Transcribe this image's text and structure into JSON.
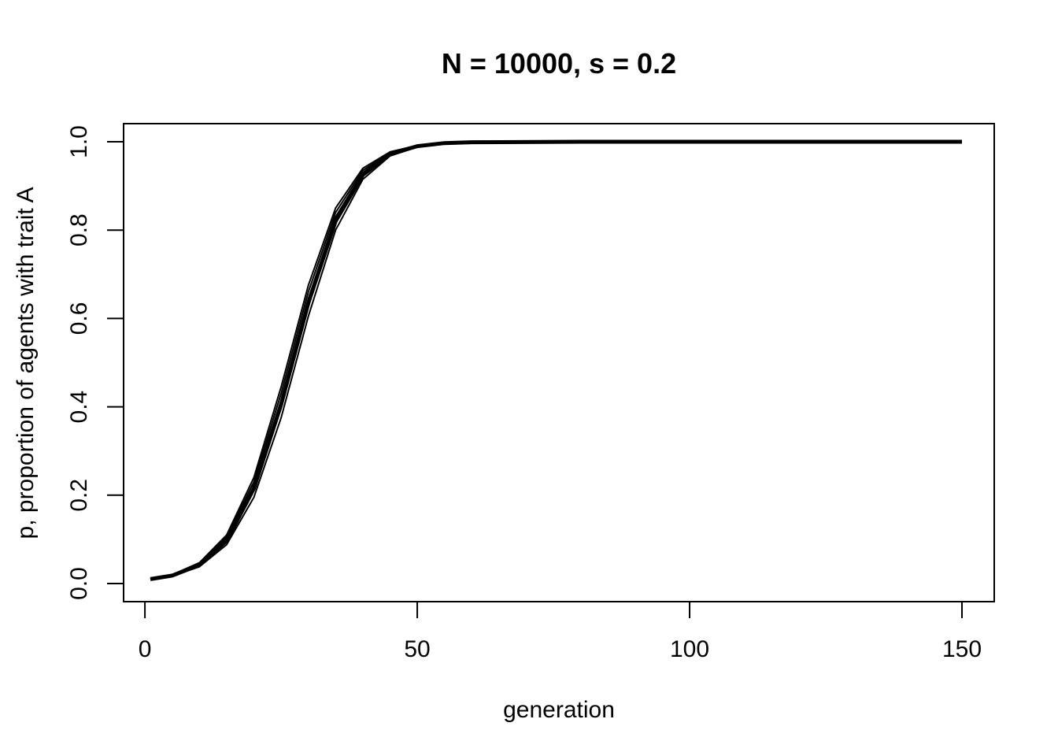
{
  "chart_data": {
    "type": "line",
    "title": "N = 10000, s = 0.2",
    "xlabel": "generation",
    "ylabel": "p, proportion of agents with trait A",
    "xlim": [
      1,
      150
    ],
    "ylim": [
      0,
      1
    ],
    "x_ticks": [
      "0",
      "50",
      "100",
      "150"
    ],
    "y_ticks": [
      "0.0",
      "0.2",
      "0.4",
      "0.6",
      "0.8",
      "1.0"
    ],
    "grid": false,
    "line_color": "#000000",
    "series": [
      {
        "x": [
          1,
          5,
          10,
          15,
          20,
          25,
          30,
          35,
          40,
          45,
          50,
          55,
          60,
          80,
          100,
          150
        ],
        "values": [
          0.01,
          0.019,
          0.045,
          0.105,
          0.23,
          0.43,
          0.66,
          0.84,
          0.935,
          0.975,
          0.991,
          0.997,
          0.999,
          1.0,
          1.0,
          1.0
        ]
      },
      {
        "x": [
          1,
          5,
          10,
          15,
          20,
          25,
          30,
          35,
          40,
          45,
          50,
          55,
          60,
          80,
          100,
          150
        ],
        "values": [
          0.01,
          0.018,
          0.042,
          0.097,
          0.215,
          0.405,
          0.635,
          0.82,
          0.925,
          0.972,
          0.99,
          0.997,
          0.999,
          1.0,
          1.0,
          1.0
        ]
      },
      {
        "x": [
          1,
          5,
          10,
          15,
          20,
          25,
          30,
          35,
          40,
          45,
          50,
          55,
          60,
          80,
          100,
          150
        ],
        "values": [
          0.01,
          0.017,
          0.038,
          0.088,
          0.195,
          0.375,
          0.605,
          0.8,
          0.915,
          0.968,
          0.988,
          0.996,
          0.999,
          1.0,
          1.0,
          1.0
        ]
      },
      {
        "x": [
          1,
          5,
          10,
          15,
          20,
          25,
          30,
          35,
          40,
          45,
          50,
          55,
          60,
          80,
          100,
          150
        ],
        "values": [
          0.01,
          0.02,
          0.047,
          0.11,
          0.24,
          0.445,
          0.675,
          0.85,
          0.94,
          0.977,
          0.992,
          0.997,
          0.999,
          1.0,
          1.0,
          1.0
        ]
      },
      {
        "x": [
          1,
          5,
          10,
          15,
          20,
          25,
          30,
          35,
          40,
          45,
          50,
          55,
          60,
          80,
          100,
          150
        ],
        "values": [
          0.01,
          0.0185,
          0.043,
          0.1,
          0.22,
          0.415,
          0.645,
          0.83,
          0.93,
          0.974,
          0.99,
          0.997,
          0.999,
          1.0,
          1.0,
          1.0
        ]
      }
    ]
  }
}
